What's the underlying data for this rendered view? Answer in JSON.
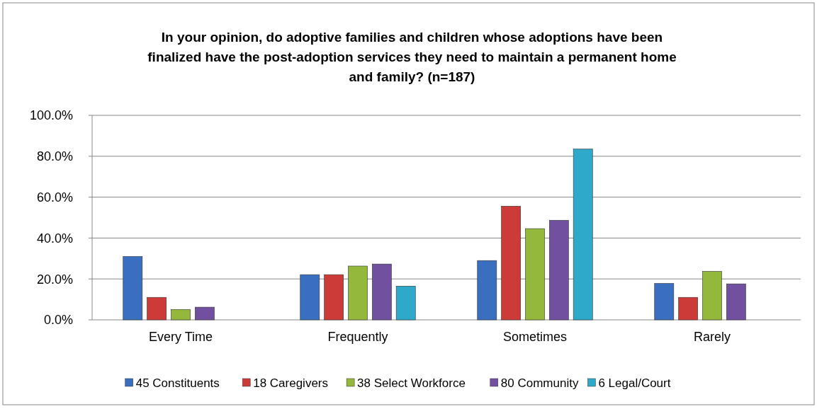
{
  "chart_data": {
    "type": "bar",
    "title": "In your opinion, do adoptive families and children whose adoptions have been finalized have the post-adoption services they need to maintain a permanent home and family? (n=187)",
    "categories": [
      "Every Time",
      "Frequently",
      "Sometimes",
      "Rarely"
    ],
    "series": [
      {
        "name": "45 Constituents",
        "color": "#3a6fbf",
        "values": [
          31.0,
          22.1,
          29.0,
          17.8
        ]
      },
      {
        "name": "18 Caregivers",
        "color": "#cc3b38",
        "values": [
          11.0,
          22.1,
          55.6,
          11.0
        ]
      },
      {
        "name": "38 Select Workforce",
        "color": "#93b83c",
        "values": [
          5.1,
          26.3,
          44.6,
          23.7
        ]
      },
      {
        "name": "80 Community",
        "color": "#7150a0",
        "values": [
          6.2,
          27.3,
          48.7,
          17.6
        ]
      },
      {
        "name": "6 Legal/Court",
        "color": "#2fa9c9",
        "values": [
          null,
          16.5,
          83.5,
          null
        ]
      }
    ],
    "ylim": [
      0,
      100
    ],
    "yticks": [
      {
        "value": 0,
        "label": "0.0%"
      },
      {
        "value": 20,
        "label": "20.0%"
      },
      {
        "value": 40,
        "label": "40.0%"
      },
      {
        "value": 60,
        "label": "60.0%"
      },
      {
        "value": 80,
        "label": "80.0%"
      },
      {
        "value": 100,
        "label": "100.0%"
      }
    ],
    "grid": "y",
    "legend": "bottom"
  }
}
